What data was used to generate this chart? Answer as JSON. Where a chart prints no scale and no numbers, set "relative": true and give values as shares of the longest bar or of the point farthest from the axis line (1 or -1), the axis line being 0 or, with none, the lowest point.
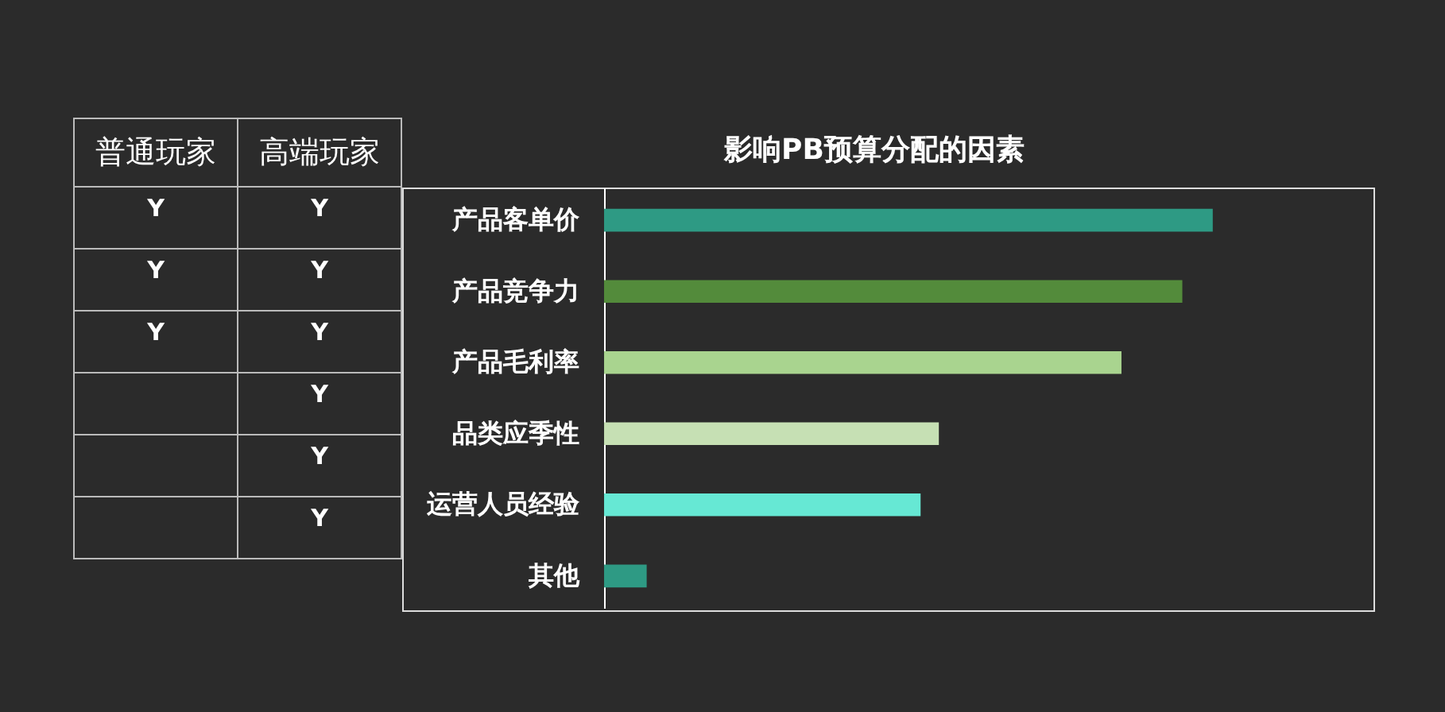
{
  "chart_data": [
    {
      "type": "other",
      "categories": [
        "普通玩家",
        "高端玩家"
      ],
      "cell_labels": [
        [
          "Y",
          "Y"
        ],
        [
          "Y",
          "Y"
        ],
        [
          "Y",
          "Y"
        ],
        [
          null,
          "Y"
        ],
        [
          null,
          "Y"
        ],
        [
          null,
          "Y"
        ]
      ]
    },
    {
      "type": "bar",
      "orientation": "horizontal",
      "relative": true,
      "title": "影响PB预算分配的因素",
      "categories": [
        "产品客单价",
        "产品竞争力",
        "产品毛利率",
        "品类应季性",
        "运营人员经验",
        "其他"
      ],
      "values": [
        1,
        0.95,
        0.85,
        0.55,
        0.52,
        0.07
      ],
      "colors": [
        "#2e9a84",
        "#538b3b",
        "#a9d48f",
        "#c6e0b4",
        "#66e8d4",
        "#2e9a84"
      ]
    }
  ]
}
